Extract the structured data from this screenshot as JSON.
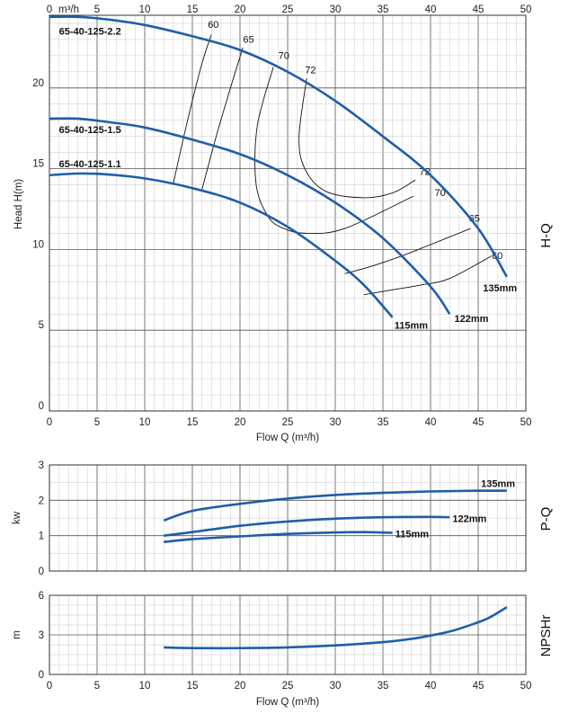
{
  "chart_data": [
    {
      "id": "hq",
      "type": "line",
      "side_label": "H-Q",
      "ylabel": "Head H(m)",
      "xlabel": "Flow Q (m³/h)",
      "top_axis_unit": "m³/h",
      "xlim": [
        0,
        50
      ],
      "ylim": [
        0,
        24.5
      ],
      "x_ticks": [
        "0",
        "5",
        "10",
        "15",
        "20",
        "25",
        "30",
        "35",
        "40",
        "45",
        "50"
      ],
      "y_ticks": [
        "0",
        "5",
        "10",
        "15",
        "20"
      ],
      "y_tick_values": [
        0,
        5,
        10,
        15,
        20
      ],
      "series": [
        {
          "name": "65-40-125-2.2",
          "impeller": "135mm",
          "x": [
            0,
            3,
            6,
            10,
            15,
            20,
            25,
            30,
            35,
            40,
            45,
            48
          ],
          "y": [
            24.4,
            24.4,
            24.25,
            23.9,
            23.2,
            22.35,
            21.0,
            19.2,
            17.0,
            14.6,
            11.3,
            8.3
          ]
        },
        {
          "name": "65-40-125-1.5",
          "impeller": "122mm",
          "x": [
            0,
            3,
            6,
            10,
            15,
            20,
            25,
            30,
            35,
            40,
            42
          ],
          "y": [
            18.1,
            18.1,
            17.9,
            17.55,
            16.8,
            15.9,
            14.6,
            12.9,
            10.7,
            7.7,
            6.0
          ]
        },
        {
          "name": "65-40-125-1.1",
          "impeller": "115mm",
          "x": [
            0,
            3,
            6,
            10,
            15,
            20,
            25,
            30,
            33,
            36
          ],
          "y": [
            14.6,
            14.7,
            14.65,
            14.4,
            13.8,
            12.9,
            11.4,
            9.3,
            7.8,
            5.8
          ]
        }
      ],
      "efficiency_lines": [
        {
          "label": "60",
          "x": [
            13,
            14.5,
            16,
            17
          ],
          "y": [
            14.1,
            18.0,
            21.5,
            23.3
          ]
        },
        {
          "label": "65",
          "x": [
            16,
            17.5,
            19,
            20.3
          ],
          "y": [
            13.7,
            17.0,
            20.0,
            22.5
          ]
        },
        {
          "label": "70",
          "x": [
            23.5,
            21.8,
            21.7,
            23,
            24.6,
            27,
            31,
            38.2
          ],
          "y": [
            21.3,
            17.6,
            14.0,
            12.0,
            11.3,
            11.0,
            11.3,
            13.3
          ]
        },
        {
          "label": "72",
          "x": [
            27,
            26.2,
            26.8,
            29,
            33,
            36,
            38.4
          ],
          "y": [
            20.6,
            17.0,
            15.0,
            13.6,
            13.2,
            13.5,
            14.3
          ]
        },
        {
          "label": "65",
          "x": [
            31,
            34,
            37,
            40,
            44.2
          ],
          "y": [
            8.5,
            9.0,
            9.6,
            10.3,
            11.3
          ]
        },
        {
          "label": "60",
          "x": [
            33,
            36,
            39,
            42,
            46.4
          ],
          "y": [
            7.2,
            7.5,
            7.8,
            8.2,
            9.6
          ]
        }
      ]
    },
    {
      "id": "pq",
      "type": "line",
      "side_label": "P-Q",
      "ylabel": "kw",
      "xlim": [
        0,
        50
      ],
      "ylim": [
        0,
        3
      ],
      "x_ticks": [
        "0",
        "5",
        "10",
        "15",
        "20",
        "25",
        "30",
        "35",
        "40",
        "45",
        "50"
      ],
      "y_ticks": [
        "0",
        "1",
        "2",
        "3"
      ],
      "y_tick_values": [
        0,
        1,
        2,
        3
      ],
      "series": [
        {
          "name": "135mm",
          "x": [
            12,
            15,
            20,
            25,
            30,
            35,
            40,
            45,
            48
          ],
          "y": [
            1.43,
            1.7,
            1.9,
            2.05,
            2.15,
            2.21,
            2.25,
            2.27,
            2.27
          ]
        },
        {
          "name": "122mm",
          "x": [
            12,
            15,
            20,
            25,
            30,
            35,
            40,
            42
          ],
          "y": [
            1.0,
            1.1,
            1.28,
            1.4,
            1.48,
            1.52,
            1.53,
            1.52
          ]
        },
        {
          "name": "115mm",
          "x": [
            12,
            15,
            20,
            25,
            30,
            33,
            36
          ],
          "y": [
            0.82,
            0.9,
            0.98,
            1.05,
            1.09,
            1.1,
            1.08
          ]
        }
      ]
    },
    {
      "id": "npsh",
      "type": "line",
      "side_label": "NPSHr",
      "ylabel": "m",
      "xlabel": "Flow Q (m³/h)",
      "xlim": [
        0,
        50
      ],
      "ylim": [
        0,
        6
      ],
      "x_ticks": [
        "0",
        "5",
        "10",
        "15",
        "20",
        "25",
        "30",
        "35",
        "40",
        "45",
        "50"
      ],
      "y_ticks": [
        "0",
        "3",
        "6"
      ],
      "y_tick_values": [
        0,
        3,
        6
      ],
      "series": [
        {
          "name": "NPSHr",
          "x": [
            12,
            15,
            20,
            25,
            30,
            35,
            38,
            40,
            42,
            44,
            46,
            48
          ],
          "y": [
            2.05,
            2.0,
            2.0,
            2.05,
            2.2,
            2.45,
            2.7,
            2.95,
            3.25,
            3.7,
            4.25,
            5.1
          ]
        }
      ]
    }
  ]
}
